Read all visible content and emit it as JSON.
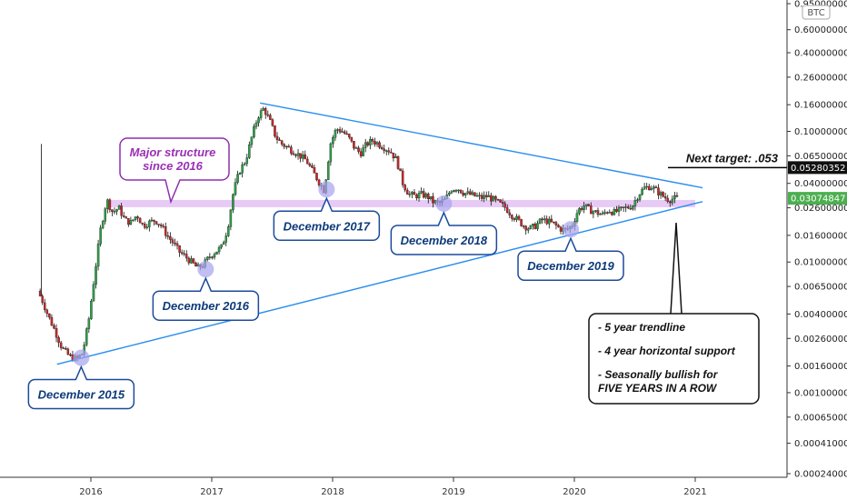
{
  "chart_data": {
    "type": "candlestick",
    "symbol_badge": "BTC",
    "scale": "log",
    "x_ticks": [
      "2016",
      "2017",
      "2018",
      "2019",
      "2020",
      "2021"
    ],
    "y_ticks": [
      "0.95000000",
      "0.60000000",
      "0.40000000",
      "0.26000000",
      "0.16000000",
      "0.10000000",
      "0.06500000",
      "0.04000000",
      "0.02600000",
      "0.01600000",
      "0.01000000",
      "0.00650000",
      "0.00400000",
      "0.00260000",
      "0.00160000",
      "0.00100000",
      "0.00065000",
      "0.00041000",
      "0.00024000"
    ],
    "y_tick_values": [
      0.95,
      0.6,
      0.4,
      0.26,
      0.16,
      0.1,
      0.065,
      0.04,
      0.026,
      0.016,
      0.01,
      0.0065,
      0.004,
      0.0026,
      0.0016,
      0.001,
      0.00065,
      0.00041,
      0.00024
    ],
    "price_path": [
      [
        2015.58,
        0.006
      ],
      [
        2015.62,
        0.005
      ],
      [
        2015.66,
        0.004
      ],
      [
        2015.72,
        0.003
      ],
      [
        2015.78,
        0.0022
      ],
      [
        2015.84,
        0.0019
      ],
      [
        2015.9,
        0.0018
      ],
      [
        2015.95,
        0.002
      ],
      [
        2016.0,
        0.0035
      ],
      [
        2016.05,
        0.008
      ],
      [
        2016.1,
        0.018
      ],
      [
        2016.15,
        0.03
      ],
      [
        2016.2,
        0.024
      ],
      [
        2016.25,
        0.026
      ],
      [
        2016.3,
        0.021
      ],
      [
        2016.35,
        0.02
      ],
      [
        2016.4,
        0.023
      ],
      [
        2016.45,
        0.019
      ],
      [
        2016.5,
        0.02
      ],
      [
        2016.55,
        0.021
      ],
      [
        2016.6,
        0.019
      ],
      [
        2016.65,
        0.016
      ],
      [
        2016.7,
        0.014
      ],
      [
        2016.75,
        0.012
      ],
      [
        2016.8,
        0.011
      ],
      [
        2016.85,
        0.01
      ],
      [
        2016.9,
        0.009
      ],
      [
        2016.95,
        0.0095
      ],
      [
        2017.0,
        0.011
      ],
      [
        2017.05,
        0.012
      ],
      [
        2017.1,
        0.013
      ],
      [
        2017.15,
        0.018
      ],
      [
        2017.2,
        0.035
      ],
      [
        2017.25,
        0.05
      ],
      [
        2017.3,
        0.06
      ],
      [
        2017.35,
        0.09
      ],
      [
        2017.4,
        0.13
      ],
      [
        2017.45,
        0.15
      ],
      [
        2017.5,
        0.12
      ],
      [
        2017.55,
        0.09
      ],
      [
        2017.6,
        0.08
      ],
      [
        2017.65,
        0.075
      ],
      [
        2017.7,
        0.07
      ],
      [
        2017.75,
        0.065
      ],
      [
        2017.8,
        0.06
      ],
      [
        2017.85,
        0.05
      ],
      [
        2017.9,
        0.042
      ],
      [
        2017.95,
        0.035
      ],
      [
        2018.0,
        0.08
      ],
      [
        2018.05,
        0.105
      ],
      [
        2018.1,
        0.1
      ],
      [
        2018.15,
        0.09
      ],
      [
        2018.2,
        0.075
      ],
      [
        2018.25,
        0.068
      ],
      [
        2018.3,
        0.08
      ],
      [
        2018.35,
        0.085
      ],
      [
        2018.4,
        0.08
      ],
      [
        2018.45,
        0.075
      ],
      [
        2018.5,
        0.07
      ],
      [
        2018.55,
        0.06
      ],
      [
        2018.6,
        0.04
      ],
      [
        2018.65,
        0.033
      ],
      [
        2018.7,
        0.032
      ],
      [
        2018.75,
        0.033
      ],
      [
        2018.8,
        0.032
      ],
      [
        2018.85,
        0.029
      ],
      [
        2018.9,
        0.028
      ],
      [
        2018.95,
        0.03
      ],
      [
        2019.0,
        0.036
      ],
      [
        2019.05,
        0.037
      ],
      [
        2019.1,
        0.034
      ],
      [
        2019.15,
        0.033
      ],
      [
        2019.2,
        0.032
      ],
      [
        2019.25,
        0.031
      ],
      [
        2019.3,
        0.032
      ],
      [
        2019.35,
        0.03
      ],
      [
        2019.4,
        0.028
      ],
      [
        2019.45,
        0.026
      ],
      [
        2019.5,
        0.023
      ],
      [
        2019.55,
        0.021
      ],
      [
        2019.6,
        0.019
      ],
      [
        2019.65,
        0.018
      ],
      [
        2019.7,
        0.019
      ],
      [
        2019.75,
        0.021
      ],
      [
        2019.8,
        0.0205
      ],
      [
        2019.85,
        0.0195
      ],
      [
        2019.9,
        0.018
      ],
      [
        2019.95,
        0.0175
      ],
      [
        2020.0,
        0.019
      ],
      [
        2020.05,
        0.025
      ],
      [
        2020.1,
        0.027
      ],
      [
        2020.15,
        0.025
      ],
      [
        2020.2,
        0.024
      ],
      [
        2020.25,
        0.023
      ],
      [
        2020.3,
        0.025
      ],
      [
        2020.35,
        0.024
      ],
      [
        2020.4,
        0.025
      ],
      [
        2020.45,
        0.026
      ],
      [
        2020.5,
        0.027
      ],
      [
        2020.55,
        0.033
      ],
      [
        2020.6,
        0.037
      ],
      [
        2020.65,
        0.038
      ],
      [
        2020.7,
        0.035
      ],
      [
        2020.75,
        0.032
      ],
      [
        2020.8,
        0.03
      ],
      [
        2020.85,
        0.0307
      ]
    ],
    "horizontal_support": 0.028,
    "upper_trendline": [
      [
        2017.4,
        0.165
      ],
      [
        2021.06,
        0.037
      ]
    ],
    "lower_trendline": [
      [
        2015.72,
        0.00165
      ],
      [
        2021.06,
        0.029
      ]
    ],
    "next_target_label": "Next target: .053",
    "next_target_value_label": "0.05280352",
    "next_target_value": 0.0528,
    "current_price_label": "0.03074847",
    "current_price_value": 0.03075,
    "callouts": [
      {
        "id": "dec2015",
        "text": "December 2015",
        "x": 2015.92,
        "y": 0.00185
      },
      {
        "id": "dec2016",
        "text": "December 2016",
        "x": 2016.95,
        "y": 0.0088
      },
      {
        "id": "dec2017",
        "text": "December 2017",
        "x": 2017.95,
        "y": 0.036
      },
      {
        "id": "dec2018",
        "text": "December 2018",
        "x": 2018.92,
        "y": 0.028
      },
      {
        "id": "dec2019",
        "text": "December 2019",
        "x": 2019.97,
        "y": 0.0178
      }
    ],
    "major_structure_lines": [
      "Major structure",
      "since 2016"
    ],
    "notes": [
      "- 5 year trendline",
      "- 4 year horizontal support",
      "- Seasonally bullish for",
      "FIVE YEARS IN A ROW"
    ],
    "colors": {
      "up": "#2e9e47",
      "down": "#c62828",
      "wick": "#111111",
      "trendline": "#2a8ef0",
      "support": "#e3c2f5",
      "callout_border": "#1c4a9a",
      "marker_fill": "#a7a2ee",
      "major_border": "#8d2fb0",
      "current_price_bg": "#4caf50",
      "target_bg": "#111111"
    }
  }
}
